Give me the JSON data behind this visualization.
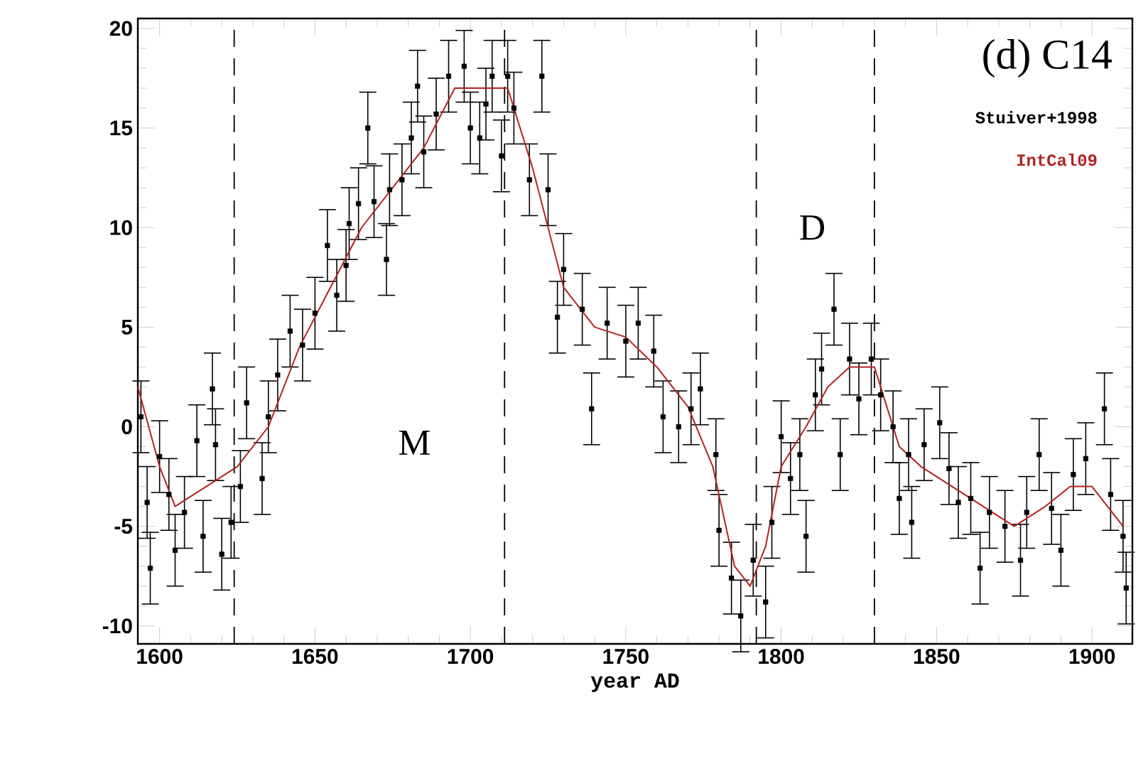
{
  "chart_data": {
    "type": "scatter",
    "title": "(d) C14",
    "xlabel": "year AD",
    "xlim": [
      1593,
      1913
    ],
    "ylim": [
      -10.9,
      20.5
    ],
    "xticks": [
      1600,
      1650,
      1700,
      1750,
      1800,
      1850,
      1900
    ],
    "yticks": [
      -10,
      -5,
      0,
      5,
      10,
      15,
      20
    ],
    "legend": "top right",
    "series": [
      {
        "name": "Stuiver+1998",
        "color": "#000000",
        "marker": "square",
        "x": [
          1594,
          1596,
          1597,
          1600,
          1603,
          1605,
          1608,
          1612,
          1614,
          1617,
          1618,
          1620,
          1623,
          1626,
          1628,
          1633,
          1635,
          1638,
          1642,
          1646,
          1650,
          1654,
          1657,
          1660,
          1661,
          1664,
          1667,
          1669,
          1673,
          1674,
          1678,
          1681,
          1683,
          1685,
          1689,
          1693,
          1698,
          1700,
          1703,
          1705,
          1707,
          1710,
          1712,
          1714,
          1719,
          1723,
          1725,
          1728,
          1730,
          1736,
          1739,
          1744,
          1750,
          1754,
          1759,
          1762,
          1767,
          1771,
          1774,
          1779,
          1780,
          1784,
          1787,
          1791,
          1795,
          1797,
          1800,
          1803,
          1806,
          1808,
          1811,
          1813,
          1817,
          1819,
          1822,
          1825,
          1829,
          1832,
          1836,
          1838,
          1841,
          1842,
          1846,
          1851,
          1854,
          1857,
          1861,
          1864,
          1867,
          1872,
          1877,
          1879,
          1883,
          1887,
          1890,
          1894,
          1898,
          1904,
          1906,
          1910,
          1911
        ],
        "values": [
          0.5,
          -3.8,
          -7.1,
          -1.5,
          -3.4,
          -6.2,
          -4.3,
          -0.7,
          -5.5,
          1.9,
          -0.9,
          -6.4,
          -4.8,
          -3.0,
          1.2,
          -2.6,
          0.5,
          2.6,
          4.8,
          4.1,
          5.7,
          9.1,
          6.6,
          8.1,
          10.2,
          11.2,
          15.0,
          11.3,
          8.4,
          11.9,
          12.4,
          14.5,
          17.1,
          13.8,
          15.7,
          17.6,
          18.1,
          15.0,
          14.5,
          16.2,
          17.6,
          13.6,
          17.6,
          16.0,
          12.4,
          17.6,
          11.9,
          5.5,
          7.9,
          5.9,
          0.9,
          5.2,
          4.3,
          5.2,
          3.8,
          0.5,
          0.0,
          0.9,
          1.9,
          -1.4,
          -5.2,
          -7.6,
          -9.5,
          -6.7,
          -8.8,
          -4.8,
          -0.5,
          -2.6,
          -1.4,
          -5.5,
          1.6,
          2.9,
          5.9,
          -1.4,
          3.4,
          1.4,
          3.4,
          1.6,
          0.0,
          -3.6,
          -1.4,
          -4.8,
          -0.9,
          0.2,
          -2.1,
          -3.8,
          -3.6,
          -7.1,
          -4.3,
          -5.0,
          -6.7,
          -4.3,
          -1.4,
          -4.1,
          -6.2,
          -2.4,
          -1.6,
          0.9,
          -3.4,
          -5.5,
          -8.1
        ],
        "errors": [
          1.8,
          1.8,
          1.8,
          1.8,
          1.8,
          1.8,
          1.8,
          1.8,
          1.8,
          1.8,
          1.8,
          1.8,
          1.8,
          1.8,
          1.8,
          1.8,
          1.8,
          1.8,
          1.8,
          1.8,
          1.8,
          1.8,
          1.8,
          1.8,
          1.8,
          1.8,
          1.8,
          1.8,
          1.8,
          1.8,
          1.8,
          1.8,
          1.8,
          1.8,
          1.8,
          1.8,
          1.8,
          1.8,
          1.8,
          1.8,
          1.8,
          1.8,
          1.8,
          1.8,
          1.8,
          1.8,
          1.8,
          1.8,
          1.8,
          1.8,
          1.8,
          1.8,
          1.8,
          1.8,
          1.8,
          1.8,
          1.8,
          1.8,
          1.8,
          1.8,
          1.8,
          1.8,
          1.8,
          1.8,
          1.8,
          1.8,
          1.8,
          1.8,
          1.8,
          1.8,
          1.8,
          1.8,
          1.8,
          1.8,
          1.8,
          1.8,
          1.8,
          1.8,
          1.8,
          1.8,
          1.8,
          1.8,
          1.8,
          1.8,
          1.8,
          1.8,
          1.8,
          1.8,
          1.8,
          1.8,
          1.8,
          1.8,
          1.8,
          1.8,
          1.8,
          1.8,
          1.8,
          1.8,
          1.8,
          1.8,
          1.8
        ]
      },
      {
        "name": "IntCal09",
        "color": "#b22222",
        "type": "line",
        "line_style": "solid",
        "x": [
          1593,
          1600,
          1605,
          1615,
          1625,
          1635,
          1645,
          1655,
          1665,
          1675,
          1685,
          1695,
          1705,
          1712,
          1720,
          1730,
          1740,
          1750,
          1760,
          1770,
          1778,
          1785,
          1790,
          1795,
          1800,
          1808,
          1815,
          1822,
          1830,
          1838,
          1845,
          1855,
          1865,
          1875,
          1885,
          1893,
          1900,
          1910
        ],
        "values": [
          2,
          -2,
          -4,
          -3,
          -2,
          0,
          4,
          7,
          10,
          12,
          14,
          17,
          17,
          17,
          13,
          7,
          5,
          4.5,
          3,
          1,
          -2,
          -7,
          -8,
          -6,
          -2,
          0,
          2,
          3,
          3,
          -1,
          -2,
          -3,
          -4,
          -5,
          -4,
          -3,
          -3,
          -5
        ]
      }
    ],
    "ref_lines": [
      {
        "axis": "x",
        "value": 1624,
        "line_style": "dashed"
      },
      {
        "axis": "x",
        "value": 1711,
        "line_style": "dashed"
      },
      {
        "axis": "x",
        "value": 1792,
        "line_style": "dashed"
      },
      {
        "axis": "x",
        "value": 1830,
        "line_style": "dashed"
      }
    ],
    "annotations": [
      {
        "text": "M",
        "x": 1682,
        "y": -0.8
      },
      {
        "text": "D",
        "x": 1810,
        "y": 10
      }
    ]
  }
}
